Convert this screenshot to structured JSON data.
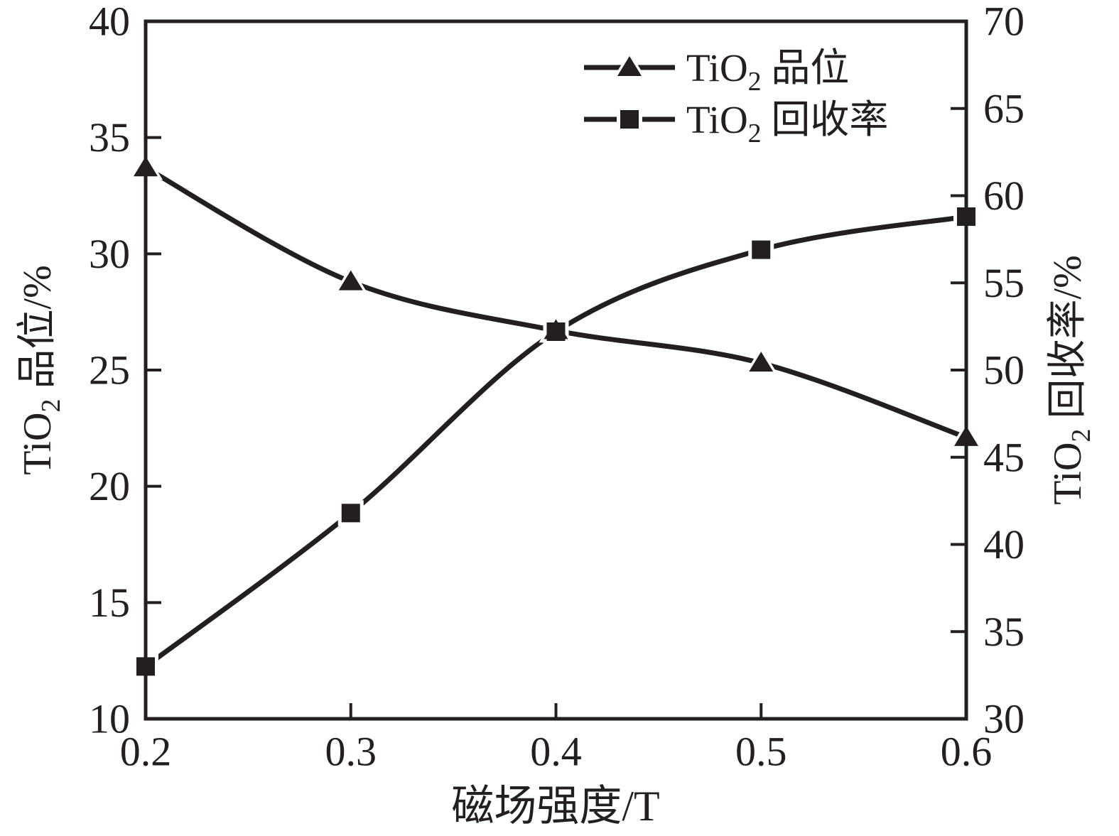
{
  "chart_data": {
    "type": "line",
    "x": [
      0.2,
      0.3,
      0.4,
      0.5,
      0.6
    ],
    "x_tick_labels": [
      "0.2",
      "0.3",
      "0.4",
      "0.5",
      "0.6"
    ],
    "xlim": [
      0.2,
      0.6
    ],
    "xlabel": "磁场强度/T",
    "grid": false,
    "legend_position": "top-center-inside",
    "line_color": "#231f20",
    "background_color": "#ffffff",
    "left_axis": {
      "label_base": "TiO",
      "label_sub": "2",
      "label_text": " 品位/%",
      "min": 10,
      "max": 40,
      "tick_step": 5,
      "tick_labels": [
        "10",
        "15",
        "20",
        "25",
        "30",
        "35",
        "40"
      ]
    },
    "right_axis": {
      "label_base": "TiO",
      "label_sub": "2",
      "label_text": " 回收率/%",
      "min": 30,
      "max": 70,
      "tick_step": 5,
      "tick_labels": [
        "30",
        "35",
        "40",
        "45",
        "50",
        "55",
        "60",
        "65",
        "70"
      ]
    },
    "series": [
      {
        "name": "TiO2 品位",
        "legend": {
          "base": "TiO",
          "sub": "2",
          "text": " 品位"
        },
        "marker": "triangle",
        "axis": "left",
        "values": [
          33.7,
          28.8,
          26.7,
          25.3,
          22.1
        ]
      },
      {
        "name": "TiO2 回收率",
        "legend": {
          "base": "TiO",
          "sub": "2",
          "text": " 回收率"
        },
        "marker": "square",
        "axis": "right",
        "values": [
          33.0,
          41.8,
          52.2,
          56.9,
          58.8
        ]
      }
    ]
  }
}
